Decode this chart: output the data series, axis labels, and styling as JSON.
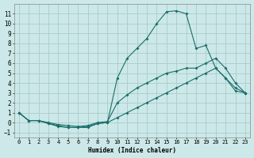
{
  "xlabel": "Humidex (Indice chaleur)",
  "background_color": "#cce8e8",
  "grid_color": "#aacccc",
  "line_color": "#1a6e6a",
  "xlim": [
    -0.5,
    23.5
  ],
  "ylim": [
    -1.5,
    12.0
  ],
  "xticks": [
    0,
    1,
    2,
    3,
    4,
    5,
    6,
    7,
    8,
    9,
    10,
    11,
    12,
    13,
    14,
    15,
    16,
    17,
    18,
    19,
    20,
    21,
    22,
    23
  ],
  "yticks": [
    -1,
    0,
    1,
    2,
    3,
    4,
    5,
    6,
    7,
    8,
    9,
    10,
    11
  ],
  "line1_x": [
    0,
    1,
    2,
    3,
    4,
    5,
    6,
    7,
    8,
    9,
    10,
    11,
    12,
    13,
    14,
    15,
    16,
    17,
    18,
    19,
    20,
    21,
    22,
    23
  ],
  "line1_y": [
    1,
    0.2,
    0.2,
    -0.1,
    -0.4,
    -0.5,
    -0.5,
    -0.4,
    -0.1,
    0.0,
    0.5,
    1.0,
    1.5,
    2.0,
    2.5,
    3.0,
    3.5,
    4.0,
    4.5,
    5.0,
    5.5,
    4.5,
    3.2,
    3.0
  ],
  "line2_x": [
    0,
    1,
    2,
    3,
    4,
    5,
    6,
    7,
    8,
    9,
    10,
    11,
    12,
    13,
    14,
    15,
    16,
    17,
    18,
    19,
    20,
    21,
    22,
    23
  ],
  "line2_y": [
    1,
    0.2,
    0.2,
    -0.1,
    -0.3,
    -0.5,
    -0.5,
    -0.5,
    -0.1,
    0.0,
    4.5,
    6.5,
    7.5,
    8.5,
    10.0,
    11.2,
    11.3,
    11.0,
    7.5,
    7.8,
    5.5,
    4.5,
    3.5,
    3.0
  ],
  "line3_x": [
    0,
    1,
    2,
    3,
    4,
    5,
    6,
    7,
    8,
    9,
    10,
    11,
    12,
    13,
    14,
    15,
    16,
    17,
    18,
    19,
    20,
    21,
    22,
    23
  ],
  "line3_y": [
    1,
    0.2,
    0.2,
    0.0,
    -0.2,
    -0.3,
    -0.4,
    -0.3,
    0.0,
    0.1,
    2.0,
    2.8,
    3.5,
    4.0,
    4.5,
    5.0,
    5.2,
    5.5,
    5.5,
    6.0,
    6.5,
    5.5,
    4.0,
    3.0
  ]
}
